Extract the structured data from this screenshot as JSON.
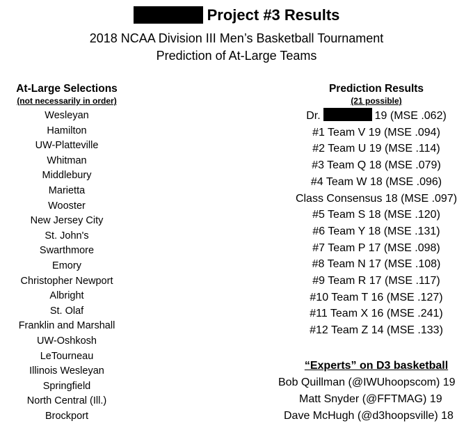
{
  "header": {
    "title": "Project #3 Results",
    "subtitle_1": "2018 NCAA Division III Men’s Basketball Tournament",
    "subtitle_2": "Prediction of At-Large Teams"
  },
  "selections": {
    "heading": "At-Large Selections",
    "note": "(not necessarily in order)",
    "teams": [
      "Wesleyan",
      "Hamilton",
      "UW-Platteville",
      "Whitman",
      "Middlebury",
      "Marietta",
      "Wooster",
      "New Jersey City",
      "St. John's",
      "Swarthmore",
      "Emory",
      "Christopher Newport",
      "Albright",
      "St. Olaf",
      "Franklin and Marshall",
      "UW-Oshkosh",
      "LeTourneau",
      "Illinois Wesleyan",
      "Springfield",
      "North Central (Ill.)",
      "Brockport"
    ]
  },
  "results": {
    "heading": "Prediction Results",
    "note": "(21 possible)",
    "first_prefix": "Dr.",
    "first_suffix": "19 (MSE .062)",
    "rows": [
      "#1 Team V 19 (MSE .094)",
      "#2 Team U 19 (MSE .114)",
      "#3 Team Q 18 (MSE .079)",
      "#4 Team W 18 (MSE .096)",
      "Class Consensus 18 (MSE .097)",
      "#5 Team S 18 (MSE .120)",
      "#6 Team Y 18 (MSE .131)",
      "#7 Team P 17 (MSE .098)",
      "#8 Team N 17 (MSE .108)",
      "#9 Team R 17 (MSE .117)",
      "#10 Team T 16 (MSE .127)",
      "#11 Team X 16 (MSE .241)",
      "#12 Team Z 14 (MSE .133)"
    ]
  },
  "experts": {
    "heading": "“Experts” on D3 basketball",
    "rows": [
      "Bob Quillman (@IWUhoopscom) 19",
      "Matt Snyder (@FFTMAG) 19",
      "Dave McHugh (@d3hoopsville) 18"
    ]
  }
}
